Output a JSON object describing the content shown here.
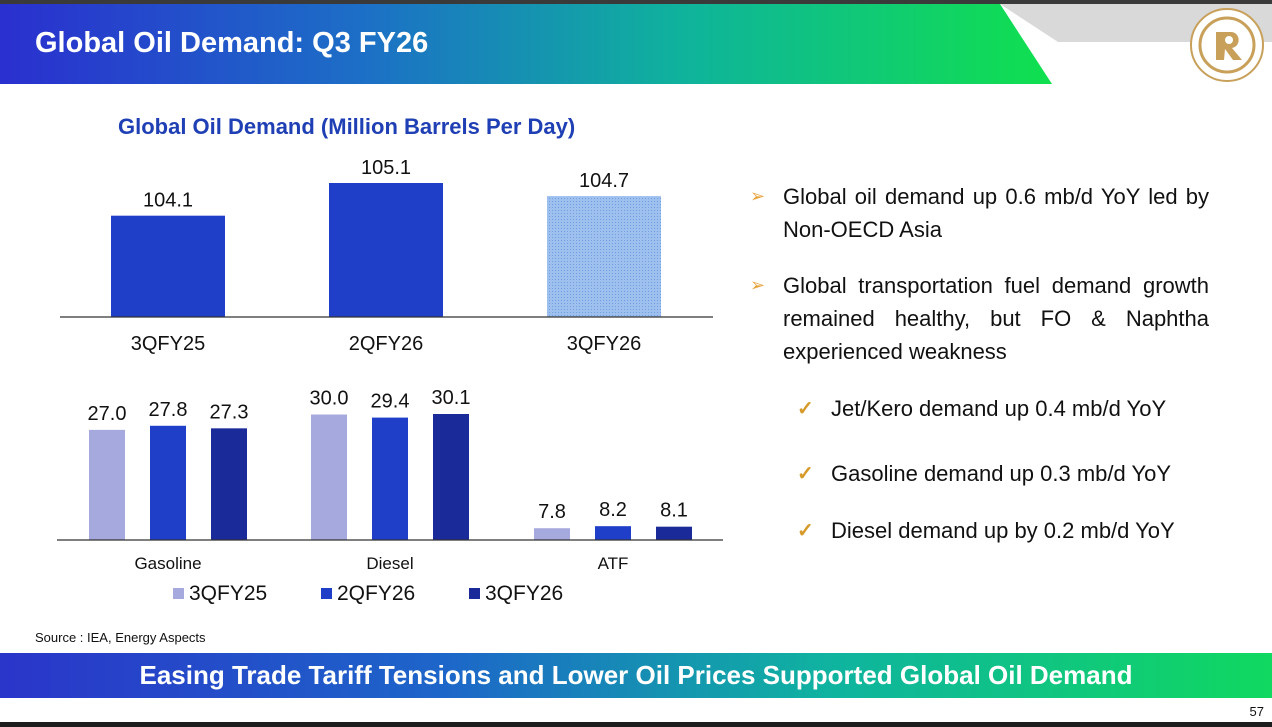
{
  "header": {
    "title": "Global Oil Demand: Q3 FY26",
    "logo_icon": "reliance-logo-icon"
  },
  "chart_data": [
    {
      "type": "bar",
      "title": "Global Oil Demand (Million Barrels Per Day)",
      "categories": [
        "3QFY25",
        "2QFY26",
        "3QFY26"
      ],
      "values": [
        104.1,
        105.1,
        104.7
      ],
      "value_labels": [
        "104.1",
        "105.1",
        "104.7"
      ],
      "ylim": [
        101,
        106
      ],
      "colors": [
        "#1f3fc8",
        "#1f3fc8",
        "#9dc0ee"
      ],
      "xlabel": "",
      "ylabel": ""
    },
    {
      "type": "bar",
      "categories": [
        "Gasoline",
        "Diesel",
        "ATF"
      ],
      "series": [
        {
          "name": "3QFY25",
          "values": [
            27.0,
            30.0,
            7.8
          ],
          "labels": [
            "27.0",
            "30.0",
            "7.8"
          ],
          "color": "#a6a9dd"
        },
        {
          "name": "2QFY26",
          "values": [
            27.8,
            29.4,
            8.2
          ],
          "labels": [
            "27.8",
            "29.4",
            "8.2"
          ],
          "color": "#1f3fc8"
        },
        {
          "name": "3QFY26",
          "values": [
            27.3,
            30.1,
            8.1
          ],
          "labels": [
            "27.3",
            "30.1",
            "8.1"
          ],
          "color": "#1a2a99"
        }
      ],
      "ylim": [
        5.5,
        31
      ],
      "legend": "bottom",
      "xlabel": "",
      "ylabel": ""
    }
  ],
  "bullets": [
    {
      "text": "Global oil demand up 0.6 mb/d YoY led by Non-OECD Asia"
    },
    {
      "text": "Global transportation fuel demand growth remained healthy, but FO & Naphtha experienced weakness"
    }
  ],
  "sub_bullets": [
    {
      "text": "Jet/Kero demand up 0.4 mb/d YoY"
    },
    {
      "text": "Gasoline demand up 0.3 mb/d YoY"
    },
    {
      "text": "Diesel demand up by 0.2 mb/d YoY"
    }
  ],
  "bullet_marker": "➢",
  "check_marker": "✓",
  "source": "Source : IEA, Energy Aspects",
  "banner": "Easing Trade Tariff Tensions and Lower Oil Prices Supported Global Oil Demand",
  "page_number": "57"
}
